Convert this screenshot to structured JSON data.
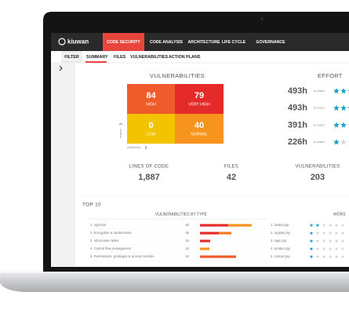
{
  "nav": {
    "logo": "kiuwan",
    "tabs": [
      "CODE SECURITY",
      "CODE ANALYSIS",
      "ARCHITECTURE",
      "LIFE CYCLE",
      "GOVERNANCE"
    ]
  },
  "subnav": {
    "filter": "FILTER",
    "tabs": [
      "SUMMARY",
      "FILES",
      "VULNERABILITIES",
      "ACTION PLANS"
    ]
  },
  "vulnerabilities": {
    "title": "VULNERABILITIES",
    "y_axis": "Impact",
    "x_axis": "Likelihood",
    "cells": [
      {
        "value": "84",
        "label": "HIGH"
      },
      {
        "value": "79",
        "label": "VERY HIGH"
      },
      {
        "value": "0",
        "label": "LOW"
      },
      {
        "value": "40",
        "label": "NORMAL"
      }
    ]
  },
  "effort": {
    "title": "EFFORT",
    "rows": [
      {
        "hours": "493h",
        "note": "to reach"
      },
      {
        "hours": "493h",
        "note": "to reach"
      },
      {
        "hours": "391h",
        "note": "to reach"
      },
      {
        "hours": "226h",
        "note": "to reach"
      }
    ]
  },
  "stats": [
    {
      "label": "LINES OF CODE",
      "value": "1,887"
    },
    {
      "label": "FILES",
      "value": "42"
    },
    {
      "label": "VULNERABILITIES",
      "value": "203"
    }
  ],
  "top10": {
    "title": "TOP 10",
    "by_type": {
      "title": "VULNERABILITIES BY TYPE",
      "rows": [
        {
          "name": "1. Injection",
          "count": "55"
        },
        {
          "name": "2. Encryption & randomness",
          "count": "35"
        },
        {
          "name": "3. Information leaks",
          "count": "15"
        },
        {
          "name": "4. Control flow management",
          "count": "10"
        },
        {
          "name": "5. Permissions, privileges & access controls",
          "count": "42"
        }
      ]
    },
    "files": [
      "1. basket.jsp",
      "2. register.jsp",
      "3. login.jsp",
      "4. product.jsp",
      "5. contact.jsp"
    ],
    "worst": "WORS"
  }
}
